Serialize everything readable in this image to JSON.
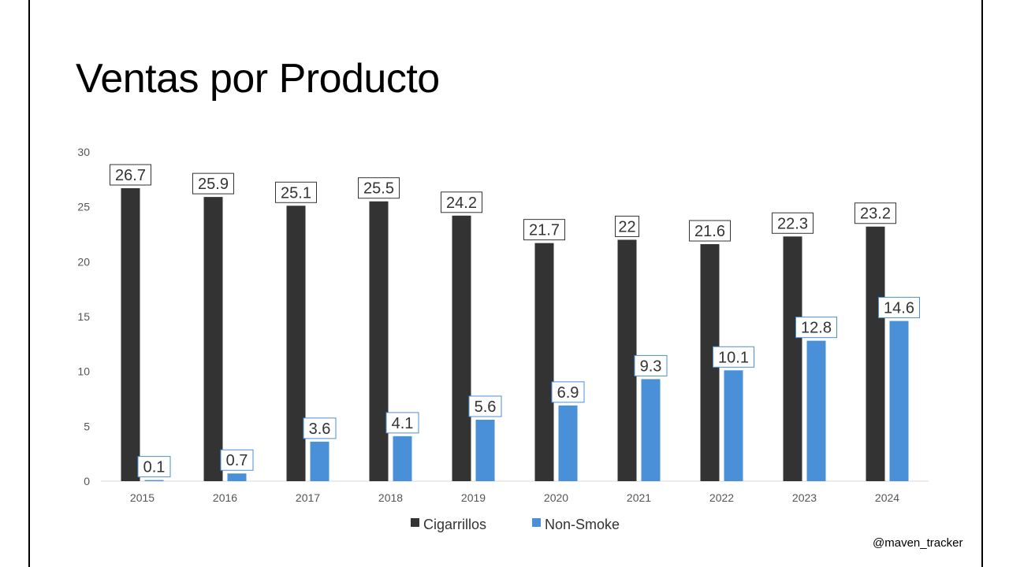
{
  "page": {
    "title": "Ventas por Producto",
    "watermark": "@maven_tracker"
  },
  "chart_data": {
    "type": "bar",
    "title": "Ventas por Producto",
    "xlabel": "",
    "ylabel": "",
    "ylim": [
      0,
      30
    ],
    "yticks": [
      0,
      5,
      10,
      15,
      20,
      25,
      30
    ],
    "categories": [
      "2015",
      "2016",
      "2017",
      "2018",
      "2019",
      "2020",
      "2021",
      "2022",
      "2023",
      "2024"
    ],
    "series": [
      {
        "name": "Cigarrillos",
        "color": "#333333",
        "values": [
          26.7,
          25.9,
          25.1,
          25.5,
          24.2,
          21.7,
          22,
          21.6,
          22.3,
          23.2
        ]
      },
      {
        "name": "Non-Smoke",
        "color": "#4a90d9",
        "values": [
          0.1,
          0.7,
          3.6,
          4.1,
          5.6,
          6.9,
          9.3,
          10.1,
          12.8,
          14.6
        ]
      }
    ],
    "legend": "bottom",
    "grid": false
  }
}
